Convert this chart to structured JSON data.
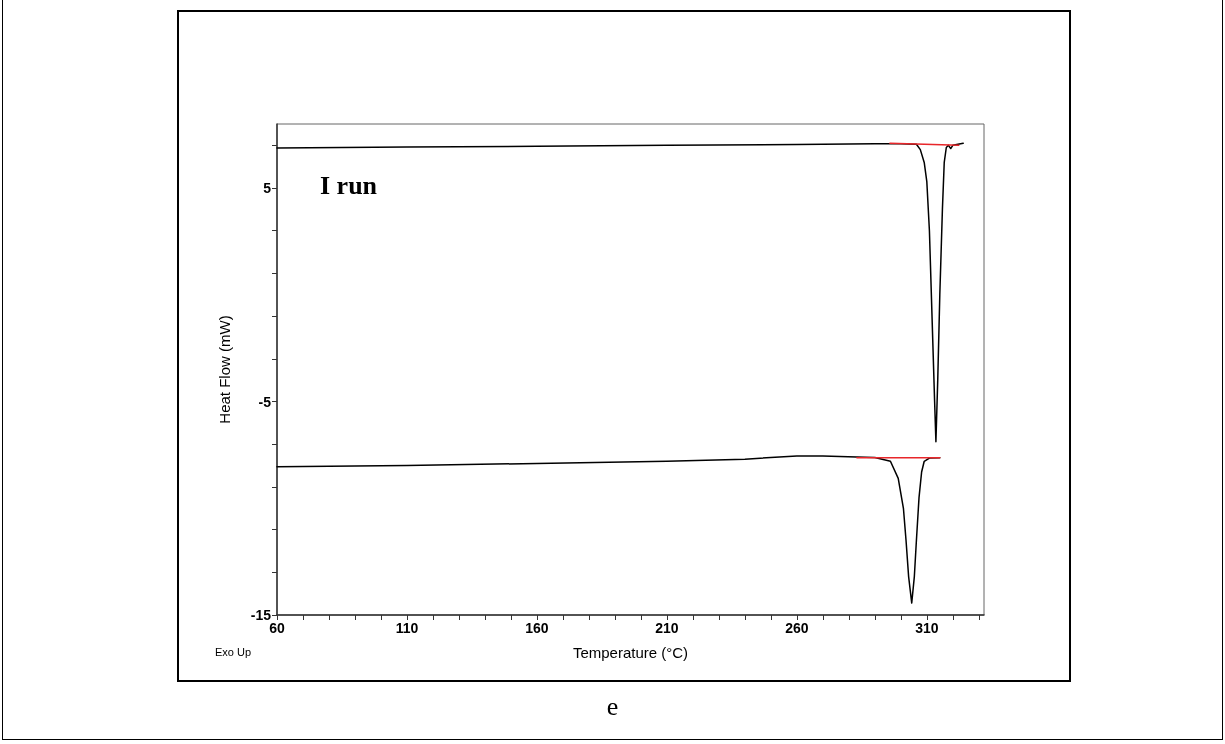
{
  "chart_data": {
    "type": "line",
    "xlabel": "Temperature (°C)",
    "ylabel": "Heat Flow (mW)",
    "annotations": [
      "I run",
      "Exo Up",
      "e"
    ],
    "xlim": [
      60,
      332
    ],
    "xticks": [
      60,
      {
        "value": 70,
        "label": null
      },
      {
        "value": 80,
        "label": null
      },
      {
        "value": 90,
        "label": null
      },
      {
        "value": 100,
        "label": null
      },
      110,
      {
        "value": 120,
        "label": null
      },
      {
        "value": 130,
        "label": null
      },
      {
        "value": 140,
        "label": null
      },
      {
        "value": 150,
        "label": null
      },
      160,
      {
        "value": 170,
        "label": null
      },
      {
        "value": 180,
        "label": null
      },
      {
        "value": 190,
        "label": null
      },
      {
        "value": 200,
        "label": null
      },
      210,
      {
        "value": 220,
        "label": null
      },
      {
        "value": 230,
        "label": null
      },
      {
        "value": 240,
        "label": null
      },
      {
        "value": 250,
        "label": null
      },
      260,
      {
        "value": 270,
        "label": null
      },
      {
        "value": 280,
        "label": null
      },
      {
        "value": 290,
        "label": null
      },
      {
        "value": 300,
        "label": null
      },
      310,
      {
        "value": 320,
        "label": null
      },
      {
        "value": 330,
        "label": null
      }
    ],
    "ylim": [
      -15,
      8
    ],
    "yticks": [
      -15,
      {
        "value": -13,
        "label": null
      },
      {
        "value": -11,
        "label": null
      },
      {
        "value": -9,
        "label": null
      },
      {
        "value": -7,
        "label": null
      },
      -5,
      {
        "value": -3,
        "label": null
      },
      {
        "value": -1,
        "label": null
      },
      {
        "value": 1,
        "label": null
      },
      {
        "value": 3,
        "label": null
      },
      5,
      {
        "value": 7,
        "label": null
      }
    ],
    "grid": false,
    "marker": "none",
    "line_style": "solid",
    "series": [
      {
        "color": "#000000",
        "x": [
          60,
          110,
          160,
          210,
          260,
          290,
          300,
          306,
          307.5,
          309,
          310,
          311,
          312,
          313,
          313.5,
          314.2,
          315,
          316,
          316.7,
          317.5,
          318.3,
          319.2,
          320,
          322,
          324
        ],
        "values": [
          6.88,
          6.92,
          6.96,
          7.0,
          7.04,
          7.07,
          7.07,
          7.05,
          6.8,
          6.2,
          5.3,
          3,
          -1,
          -5,
          -6.88,
          -4,
          0,
          4,
          6.2,
          6.9,
          7.0,
          6.85,
          7.0,
          7.05,
          7.1
        ]
      },
      {
        "color": "#000000",
        "x": [
          60,
          110,
          160,
          210,
          240,
          260,
          270,
          283,
          290,
          296,
          299,
          301,
          302,
          303,
          304.2,
          305.2,
          306,
          307,
          308,
          309,
          311,
          315
        ],
        "values": [
          -8.05,
          -8.0,
          -7.9,
          -7.8,
          -7.7,
          -7.55,
          -7.55,
          -7.6,
          -7.62,
          -7.8,
          -8.6,
          -10,
          -11.5,
          -13.2,
          -14.44,
          -13.2,
          -11.5,
          -9.5,
          -8.3,
          -7.8,
          -7.65,
          -7.63
        ]
      },
      {
        "color": "#e8262a",
        "x": [
          295.8,
          322.3
        ],
        "values": [
          7.1,
          7.0
        ]
      },
      {
        "color": "#e8262a",
        "x": [
          283.1,
          315
        ],
        "values": [
          -7.63,
          -7.63
        ]
      }
    ]
  }
}
